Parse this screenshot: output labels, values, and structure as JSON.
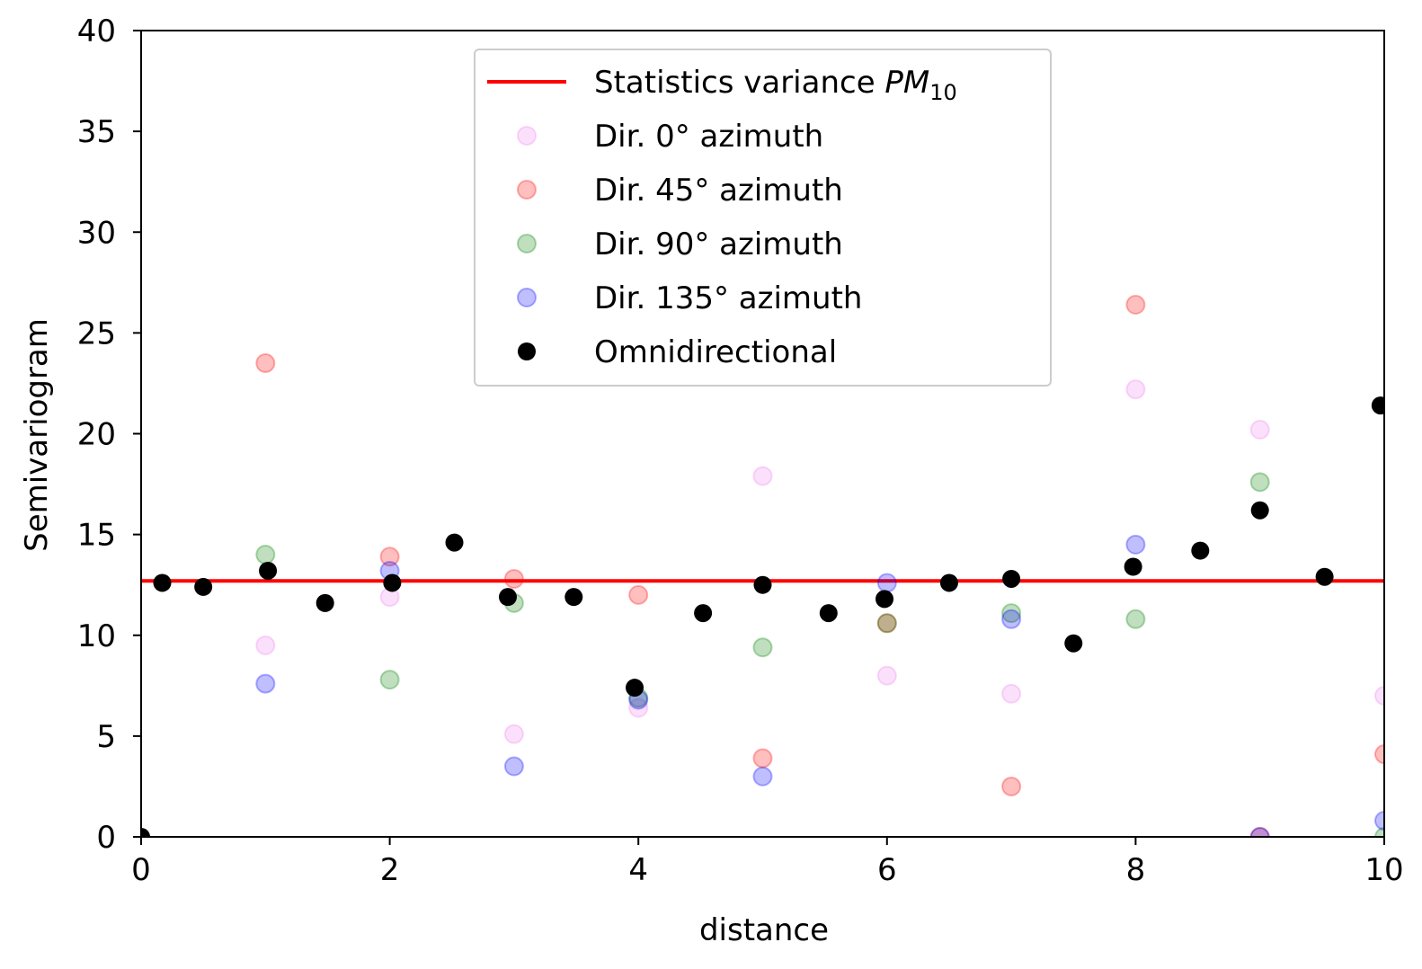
{
  "chart_data": {
    "type": "scatter",
    "xlabel": "distance",
    "ylabel": "Semivariogram",
    "xlim": [
      0,
      10
    ],
    "ylim": [
      0,
      40
    ],
    "grid": false,
    "legend_position": "top-center",
    "x_ticks": [
      "0",
      "2",
      "4",
      "6",
      "8",
      "10"
    ],
    "y_ticks": [
      "0",
      "5",
      "10",
      "15",
      "20",
      "25",
      "30",
      "35",
      "40"
    ],
    "hline": {
      "label": "Statistics variance",
      "label_var": "PM",
      "label_sub": "10",
      "y": 12.7,
      "color": "#ff0000"
    },
    "series": [
      {
        "name": "Dir. 0° azimuth",
        "color": "#ee82ee",
        "alpha": 0.25,
        "points": [
          [
            1,
            9.5
          ],
          [
            2,
            11.9
          ],
          [
            3,
            5.1
          ],
          [
            4,
            6.4
          ],
          [
            5,
            17.9
          ],
          [
            6,
            8.0
          ],
          [
            7,
            7.1
          ],
          [
            8,
            22.2
          ],
          [
            9,
            20.2
          ],
          [
            10,
            7.0
          ]
        ]
      },
      {
        "name": "Dir. 45° azimuth",
        "color": "#ff0000",
        "alpha": 0.25,
        "points": [
          [
            1,
            23.5
          ],
          [
            2,
            13.9
          ],
          [
            3,
            12.8
          ],
          [
            4,
            12.0
          ],
          [
            5,
            3.9
          ],
          [
            6,
            10.6
          ],
          [
            7,
            2.5
          ],
          [
            8,
            26.4
          ],
          [
            9,
            0.0
          ],
          [
            10,
            4.1
          ]
        ]
      },
      {
        "name": "Dir. 90° azimuth",
        "color": "#008000",
        "alpha": 0.25,
        "points": [
          [
            1,
            14.0
          ],
          [
            2,
            7.8
          ],
          [
            3,
            11.6
          ],
          [
            4,
            6.9
          ],
          [
            5,
            9.4
          ],
          [
            6,
            10.6
          ],
          [
            7,
            11.1
          ],
          [
            8,
            10.8
          ],
          [
            9,
            17.6
          ],
          [
            10,
            0.0
          ]
        ]
      },
      {
        "name": "Dir. 135° azimuth",
        "color": "#0000ff",
        "alpha": 0.25,
        "points": [
          [
            1,
            7.6
          ],
          [
            2,
            13.2
          ],
          [
            3,
            3.5
          ],
          [
            4,
            6.8
          ],
          [
            5,
            3.0
          ],
          [
            6,
            12.6
          ],
          [
            7,
            10.8
          ],
          [
            8,
            14.5
          ],
          [
            9,
            0.0
          ],
          [
            10,
            0.8
          ]
        ]
      },
      {
        "name": "Omnidirectional",
        "color": "#000000",
        "alpha": 1,
        "points": [
          [
            0,
            0.0
          ],
          [
            0.17,
            12.6
          ],
          [
            0.5,
            12.4
          ],
          [
            1.02,
            13.2
          ],
          [
            1.48,
            11.6
          ],
          [
            2.02,
            12.6
          ],
          [
            2.52,
            14.6
          ],
          [
            2.95,
            11.9
          ],
          [
            3.48,
            11.9
          ],
          [
            3.97,
            7.4
          ],
          [
            4.52,
            11.1
          ],
          [
            5.0,
            12.5
          ],
          [
            5.53,
            11.1
          ],
          [
            5.98,
            11.8
          ],
          [
            6.5,
            12.6
          ],
          [
            7.0,
            12.8
          ],
          [
            7.5,
            9.6
          ],
          [
            7.98,
            13.4
          ],
          [
            8.52,
            14.2
          ],
          [
            9.0,
            16.2
          ],
          [
            9.52,
            12.9
          ],
          [
            9.97,
            21.4
          ]
        ]
      }
    ]
  }
}
